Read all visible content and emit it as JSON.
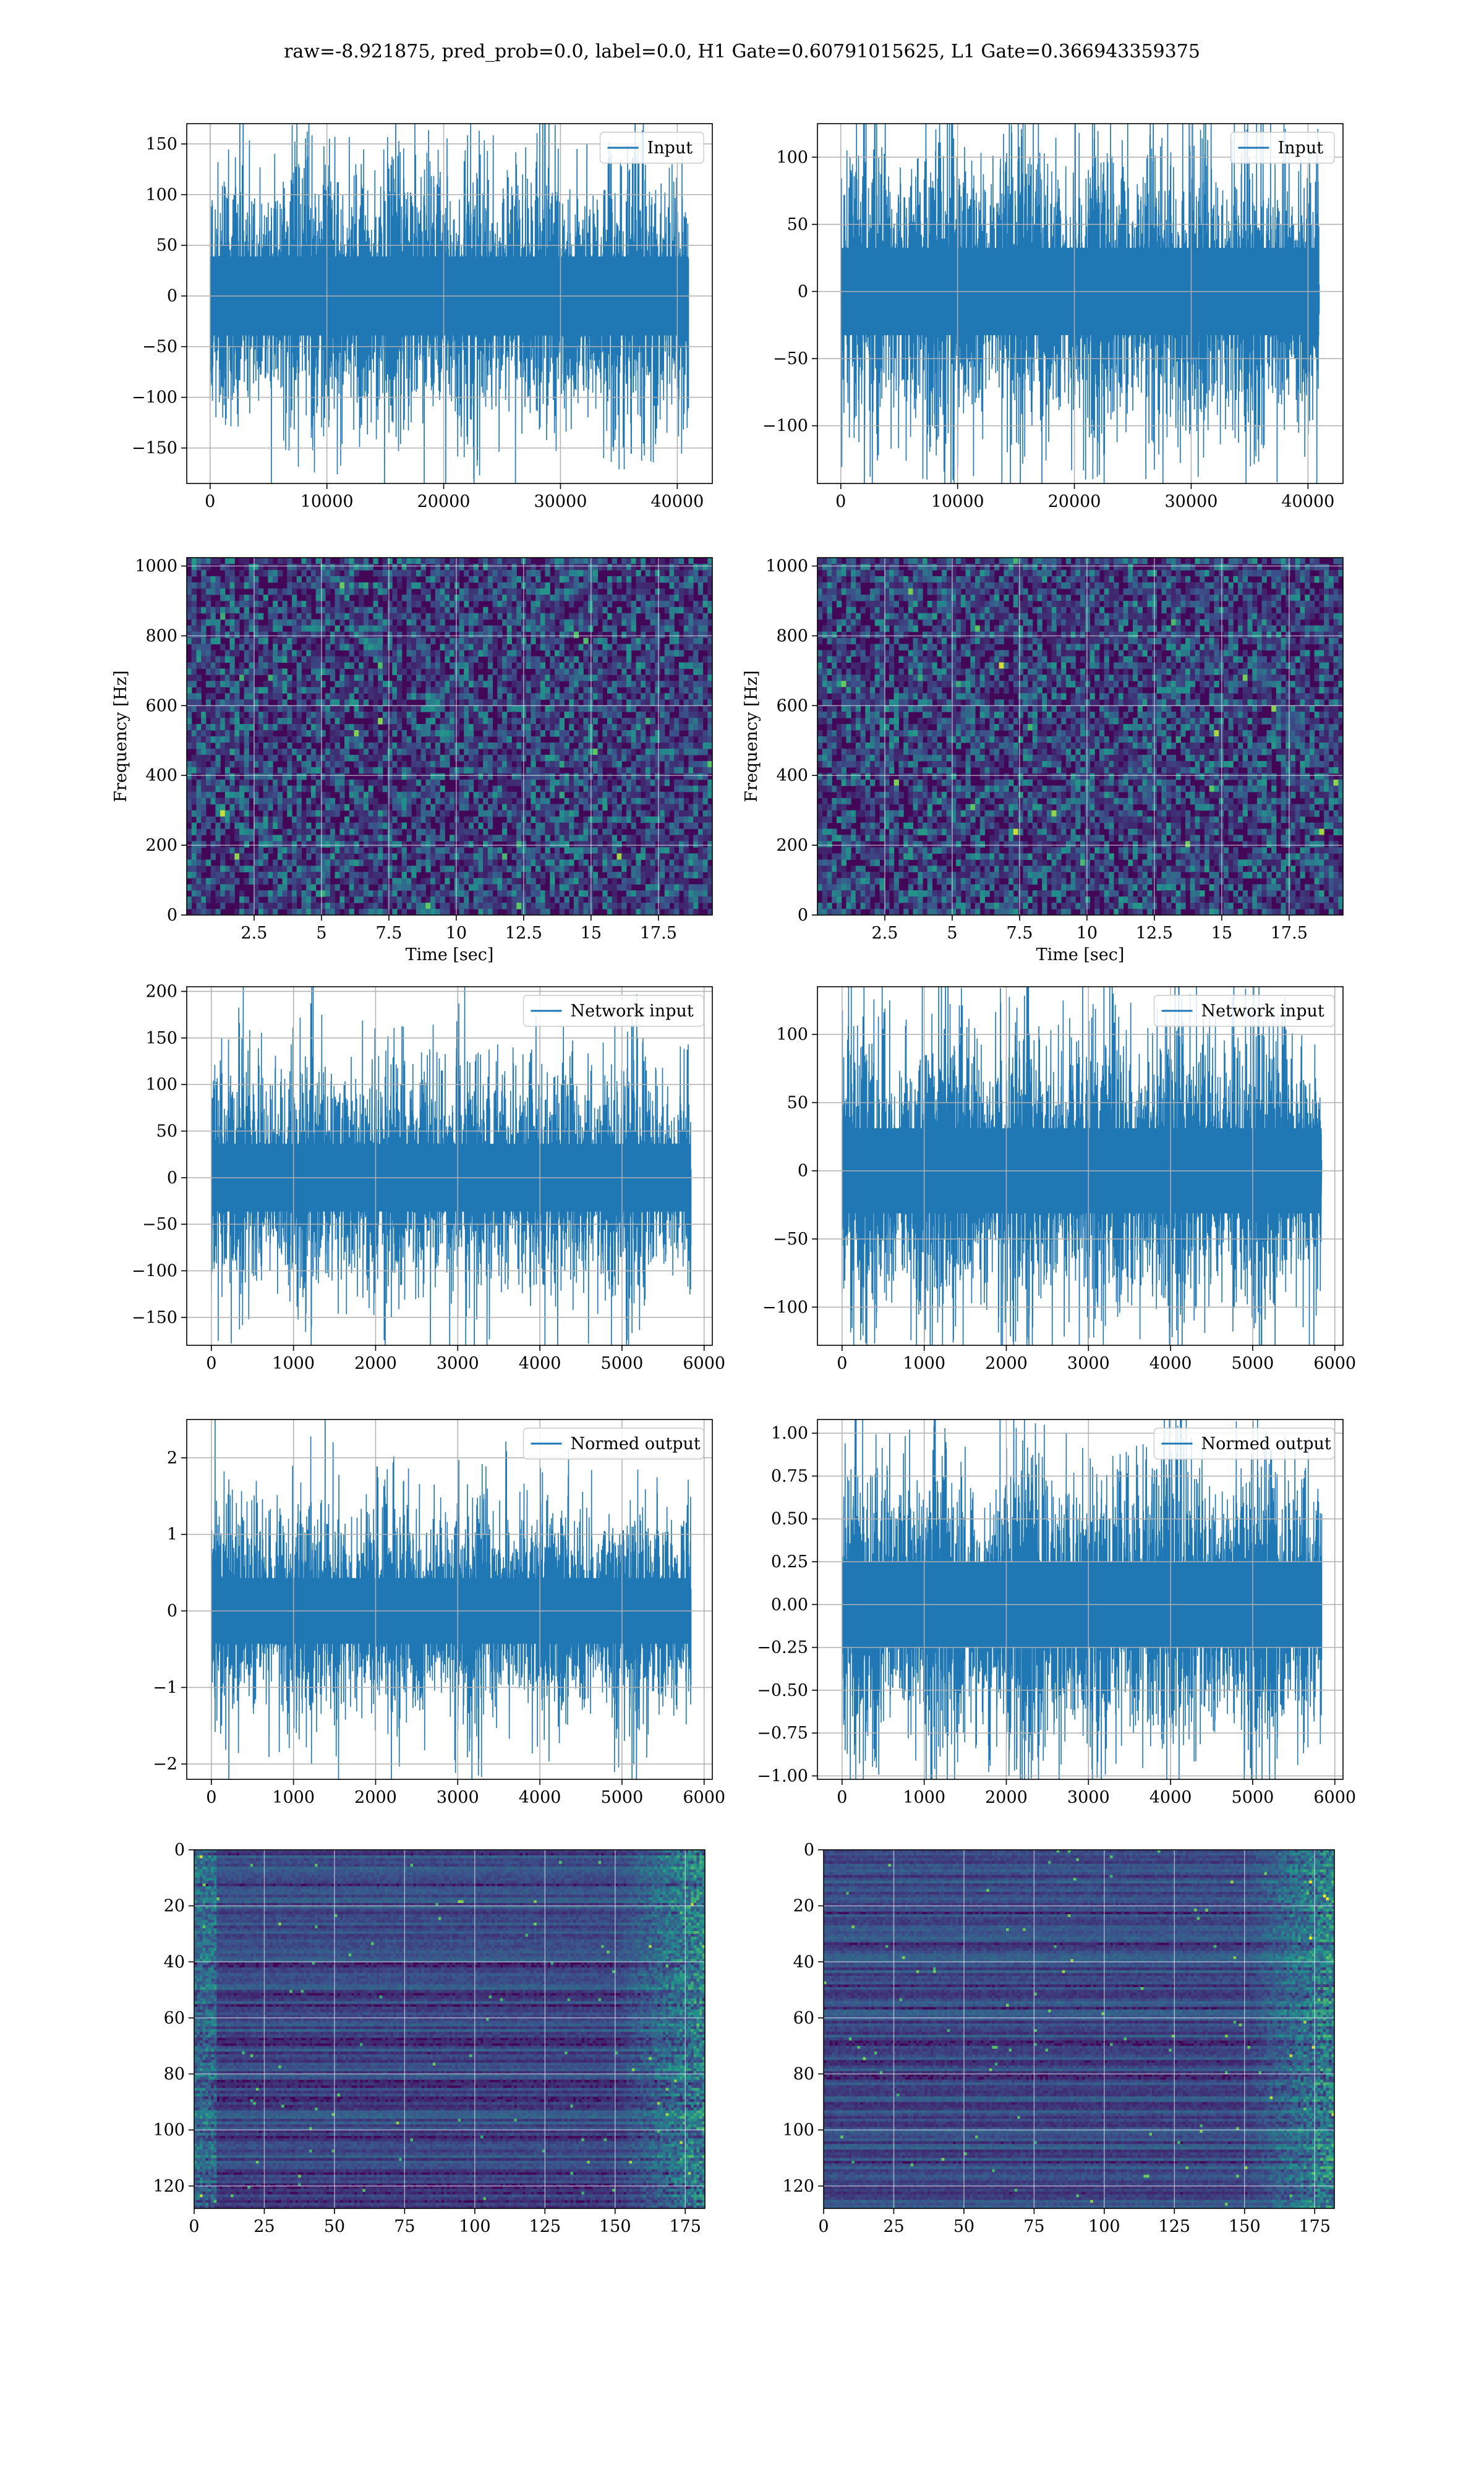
{
  "figure": {
    "title": "raw=-8.921875, pred_prob=0.0, label=0.0, H1 Gate=0.60791015625, L1 Gate=0.366943359375"
  },
  "chart_data": [
    {
      "id": "h1-input",
      "type": "line",
      "row": 0,
      "col": 0,
      "series": [
        {
          "name": "Input",
          "color": "#1f77b4",
          "n": 40960,
          "amplitude_std": 30,
          "noise": "gaussian",
          "spikes": [
            {
              "x": 10700,
              "y": 157
            },
            {
              "x": 10900,
              "y": -176
            },
            {
              "x": 33700,
              "y": -160
            },
            {
              "x": 0,
              "y": -100
            }
          ]
        }
      ],
      "xlim": [
        -2000,
        43000
      ],
      "ylim": [
        -185,
        170
      ],
      "xticks": [
        0,
        10000,
        20000,
        30000,
        40000
      ],
      "yticks": [
        -150,
        -100,
        -50,
        0,
        50,
        100,
        150
      ],
      "grid": true,
      "legend": "top-right"
    },
    {
      "id": "l1-input",
      "type": "line",
      "row": 0,
      "col": 1,
      "series": [
        {
          "name": "Input",
          "color": "#1f77b4",
          "n": 40960,
          "amplitude_std": 25,
          "noise": "gaussian",
          "spikes": [
            {
              "x": 10000,
              "y": -130
            },
            {
              "x": 20400,
              "y": 118
            },
            {
              "x": 17800,
              "y": -112
            }
          ]
        }
      ],
      "xlim": [
        -2000,
        43000
      ],
      "ylim": [
        -143,
        125
      ],
      "xticks": [
        0,
        10000,
        20000,
        30000,
        40000
      ],
      "yticks": [
        -100,
        -50,
        0,
        50,
        100
      ],
      "grid": true,
      "legend": "top-right"
    },
    {
      "id": "h1-spectrogram",
      "type": "heatmap",
      "row": 1,
      "col": 0,
      "colormap": "viridis",
      "xlim": [
        0,
        19.5
      ],
      "ylim": [
        0,
        1024
      ],
      "xticks": [
        2.5,
        5.0,
        7.5,
        10.0,
        12.5,
        15.0,
        17.5
      ],
      "yticks": [
        0,
        200,
        400,
        600,
        800,
        1000
      ],
      "xlabel": "Time [sec]",
      "ylabel": "Frequency [Hz]",
      "grid": true
    },
    {
      "id": "l1-spectrogram",
      "type": "heatmap",
      "row": 1,
      "col": 1,
      "colormap": "viridis",
      "xlim": [
        0,
        19.5
      ],
      "ylim": [
        0,
        1024
      ],
      "xticks": [
        2.5,
        5.0,
        7.5,
        10.0,
        12.5,
        15.0,
        17.5
      ],
      "yticks": [
        0,
        200,
        400,
        600,
        800,
        1000
      ],
      "xlabel": "Time [sec]",
      "ylabel": "Frequency [Hz]",
      "grid": true
    },
    {
      "id": "h1-network-input",
      "type": "line",
      "row": 2,
      "col": 0,
      "series": [
        {
          "name": "Network input",
          "color": "#1f77b4",
          "n": 5840,
          "amplitude_std": 28,
          "noise": "gaussian",
          "spikes": [
            {
              "x": 1210,
              "y": 187
            },
            {
              "x": 1220,
              "y": -160
            },
            {
              "x": 0,
              "y": -125
            },
            {
              "x": 5,
              "y": 85
            }
          ]
        }
      ],
      "xlim": [
        -300,
        6100
      ],
      "ylim": [
        -180,
        205
      ],
      "xticks": [
        0,
        1000,
        2000,
        3000,
        4000,
        5000,
        6000
      ],
      "yticks": [
        -150,
        -100,
        -50,
        0,
        50,
        100,
        150,
        200
      ],
      "grid": true,
      "legend": "top-right"
    },
    {
      "id": "l1-network-input",
      "type": "line",
      "row": 2,
      "col": 1,
      "series": [
        {
          "name": "Network input",
          "color": "#1f77b4",
          "n": 5840,
          "amplitude_std": 24,
          "noise": "gaussian",
          "spikes": [
            {
              "x": 580,
              "y": 125
            },
            {
              "x": 2320,
              "y": -115
            },
            {
              "x": 0,
              "y": -90
            }
          ]
        }
      ],
      "xlim": [
        -300,
        6100
      ],
      "ylim": [
        -128,
        135
      ],
      "xticks": [
        0,
        1000,
        2000,
        3000,
        4000,
        5000,
        6000
      ],
      "yticks": [
        -100,
        -50,
        0,
        50,
        100
      ],
      "grid": true,
      "legend": "top-right"
    },
    {
      "id": "h1-normed-output",
      "type": "line",
      "row": 3,
      "col": 0,
      "series": [
        {
          "name": "Normed output",
          "color": "#1f77b4",
          "n": 5840,
          "amplitude_std": 0.33,
          "noise": "gaussian",
          "spikes": [
            {
              "x": 1210,
              "y": 2.28
            },
            {
              "x": 1220,
              "y": -2.0
            },
            {
              "x": 0,
              "y": -1.55
            },
            {
              "x": 5,
              "y": 1.05
            }
          ]
        }
      ],
      "xlim": [
        -300,
        6100
      ],
      "ylim": [
        -2.2,
        2.5
      ],
      "xticks": [
        0,
        1000,
        2000,
        3000,
        4000,
        5000,
        6000
      ],
      "yticks": [
        -2,
        -1,
        0,
        1,
        2
      ],
      "grid": true,
      "legend": "top-right"
    },
    {
      "id": "l1-normed-output",
      "type": "line",
      "row": 3,
      "col": 1,
      "series": [
        {
          "name": "Normed output",
          "color": "#1f77b4",
          "n": 5840,
          "amplitude_std": 0.19,
          "noise": "gaussian",
          "spikes": [
            {
              "x": 580,
              "y": 1.0
            },
            {
              "x": 2320,
              "y": -0.91
            },
            {
              "x": 0,
              "y": -0.72
            }
          ]
        }
      ],
      "xlim": [
        -300,
        6100
      ],
      "ylim": [
        -1.02,
        1.08
      ],
      "xticks": [
        0,
        1000,
        2000,
        3000,
        4000,
        5000,
        6000
      ],
      "yticks": [
        -1.0,
        -0.75,
        -0.5,
        -0.25,
        0.0,
        0.25,
        0.5,
        0.75,
        1.0
      ],
      "ytick_labels": [
        "−1.00",
        "−0.75",
        "−0.50",
        "−0.25",
        "0.00",
        "0.25",
        "0.50",
        "0.75",
        "1.00"
      ],
      "grid": true,
      "legend": "top-right"
    },
    {
      "id": "h1-feature-map",
      "type": "heatmap",
      "row": 4,
      "col": 0,
      "colormap": "viridis",
      "xlim": [
        0,
        182
      ],
      "ylim": [
        128,
        0
      ],
      "y_inverted": true,
      "xticks": [
        0,
        25,
        50,
        75,
        100,
        125,
        150,
        175
      ],
      "yticks": [
        0,
        20,
        40,
        60,
        80,
        100,
        120
      ],
      "grid": true
    },
    {
      "id": "l1-feature-map",
      "type": "heatmap",
      "row": 4,
      "col": 1,
      "colormap": "viridis",
      "xlim": [
        0,
        182
      ],
      "ylim": [
        128,
        0
      ],
      "y_inverted": true,
      "xticks": [
        0,
        25,
        50,
        75,
        100,
        125,
        150,
        175
      ],
      "yticks": [
        0,
        20,
        40,
        60,
        80,
        100,
        120
      ],
      "grid": true
    }
  ]
}
